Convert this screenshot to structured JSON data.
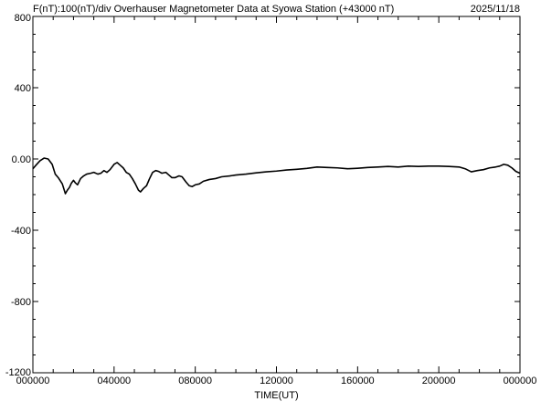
{
  "header": {
    "left": "F(nT):100(nT)/div  Overhauser Magnetometer Data at Syowa Station (+43000 nT)",
    "date": "2025/11/18"
  },
  "chart_data": {
    "type": "line",
    "title": "F(nT):100(nT)/div  Overhauser Magnetometer Data at Syowa Station (+43000 nT)",
    "xlabel": "TIME(UT)",
    "ylabel": "",
    "xlim": [
      0,
      24
    ],
    "ylim": [
      -1200,
      800
    ],
    "grid": false,
    "x_ticks": [
      {
        "value": 0,
        "label": "000000"
      },
      {
        "value": 4,
        "label": "040000"
      },
      {
        "value": 8,
        "label": "080000"
      },
      {
        "value": 12,
        "label": "120000"
      },
      {
        "value": 16,
        "label": "160000"
      },
      {
        "value": 20,
        "label": "200000"
      },
      {
        "value": 24,
        "label": "000000"
      }
    ],
    "y_ticks": [
      {
        "value": 800,
        "label": "800"
      },
      {
        "value": 400,
        "label": "400"
      },
      {
        "value": 0,
        "label": "0.00"
      },
      {
        "value": -400,
        "label": "-400"
      },
      {
        "value": -800,
        "label": "-800"
      },
      {
        "value": -1200,
        "label": "-1200"
      }
    ],
    "series": [
      {
        "color": "#000000",
        "points": [
          [
            0.0,
            -55
          ],
          [
            0.15,
            -35
          ],
          [
            0.35,
            -10
          ],
          [
            0.55,
            5
          ],
          [
            0.75,
            0
          ],
          [
            0.95,
            -30
          ],
          [
            1.1,
            -85
          ],
          [
            1.25,
            -105
          ],
          [
            1.45,
            -140
          ],
          [
            1.6,
            -195
          ],
          [
            1.7,
            -175
          ],
          [
            1.8,
            -160
          ],
          [
            1.9,
            -135
          ],
          [
            2.0,
            -120
          ],
          [
            2.1,
            -135
          ],
          [
            2.2,
            -145
          ],
          [
            2.35,
            -110
          ],
          [
            2.5,
            -95
          ],
          [
            2.65,
            -85
          ],
          [
            2.85,
            -80
          ],
          [
            3.0,
            -75
          ],
          [
            3.2,
            -85
          ],
          [
            3.35,
            -80
          ],
          [
            3.5,
            -65
          ],
          [
            3.65,
            -75
          ],
          [
            3.8,
            -60
          ],
          [
            4.0,
            -30
          ],
          [
            4.15,
            -20
          ],
          [
            4.3,
            -35
          ],
          [
            4.45,
            -50
          ],
          [
            4.6,
            -75
          ],
          [
            4.75,
            -85
          ],
          [
            4.9,
            -110
          ],
          [
            5.05,
            -140
          ],
          [
            5.2,
            -175
          ],
          [
            5.3,
            -185
          ],
          [
            5.45,
            -165
          ],
          [
            5.6,
            -150
          ],
          [
            5.75,
            -110
          ],
          [
            5.9,
            -75
          ],
          [
            6.05,
            -65
          ],
          [
            6.2,
            -70
          ],
          [
            6.35,
            -80
          ],
          [
            6.55,
            -75
          ],
          [
            6.7,
            -90
          ],
          [
            6.85,
            -105
          ],
          [
            7.0,
            -105
          ],
          [
            7.2,
            -95
          ],
          [
            7.35,
            -100
          ],
          [
            7.55,
            -130
          ],
          [
            7.7,
            -150
          ],
          [
            7.85,
            -155
          ],
          [
            8.0,
            -145
          ],
          [
            8.2,
            -140
          ],
          [
            8.4,
            -125
          ],
          [
            8.7,
            -115
          ],
          [
            9.0,
            -110
          ],
          [
            9.3,
            -100
          ],
          [
            9.7,
            -95
          ],
          [
            10.0,
            -90
          ],
          [
            10.5,
            -85
          ],
          [
            11.0,
            -78
          ],
          [
            11.5,
            -72
          ],
          [
            12.0,
            -68
          ],
          [
            12.5,
            -62
          ],
          [
            13.0,
            -58
          ],
          [
            13.5,
            -53
          ],
          [
            14.0,
            -45
          ],
          [
            14.5,
            -48
          ],
          [
            15.0,
            -50
          ],
          [
            15.5,
            -55
          ],
          [
            16.0,
            -52
          ],
          [
            16.5,
            -48
          ],
          [
            17.0,
            -45
          ],
          [
            17.5,
            -42
          ],
          [
            18.0,
            -45
          ],
          [
            18.5,
            -40
          ],
          [
            19.0,
            -42
          ],
          [
            19.5,
            -40
          ],
          [
            20.0,
            -40
          ],
          [
            20.5,
            -42
          ],
          [
            21.0,
            -45
          ],
          [
            21.3,
            -55
          ],
          [
            21.6,
            -72
          ],
          [
            21.9,
            -65
          ],
          [
            22.2,
            -60
          ],
          [
            22.5,
            -50
          ],
          [
            22.8,
            -45
          ],
          [
            23.0,
            -40
          ],
          [
            23.2,
            -30
          ],
          [
            23.4,
            -35
          ],
          [
            23.6,
            -50
          ],
          [
            23.8,
            -70
          ],
          [
            24.0,
            -80
          ]
        ]
      }
    ]
  }
}
